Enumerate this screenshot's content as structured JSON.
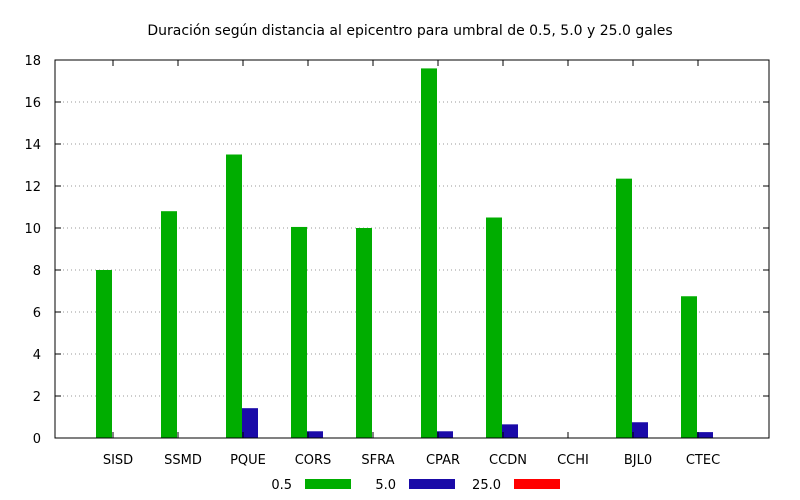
{
  "chart_data": {
    "type": "bar",
    "title": "Duración según distancia al epicentro para umbral de 0.5, 5.0 y 25.0 gales",
    "xlabel": "",
    "ylabel": "",
    "ylim": [
      0,
      18
    ],
    "yticks": [
      0,
      2,
      4,
      6,
      8,
      10,
      12,
      14,
      16,
      18
    ],
    "grid": true,
    "legend_position": "bottom",
    "categories": [
      "SISD",
      "SSMD",
      "PQUE",
      "CORS",
      "SFRA",
      "CPAR",
      "CCDN",
      "CCHI",
      "BJL0",
      "CTEC"
    ],
    "series": [
      {
        "name": "0.5",
        "color": "#00ad00",
        "values": [
          8.0,
          10.8,
          13.5,
          10.05,
          10.0,
          17.6,
          10.5,
          0,
          12.35,
          6.75
        ]
      },
      {
        "name": "5.0",
        "color": "#1a0aa8",
        "values": [
          0,
          0,
          1.42,
          0.32,
          0,
          0.32,
          0.65,
          0,
          0.75,
          0.28
        ]
      },
      {
        "name": "25.0",
        "color": "#ff0000",
        "values": [
          0,
          0,
          0,
          0,
          0,
          0,
          0,
          0,
          0,
          0
        ]
      }
    ]
  }
}
